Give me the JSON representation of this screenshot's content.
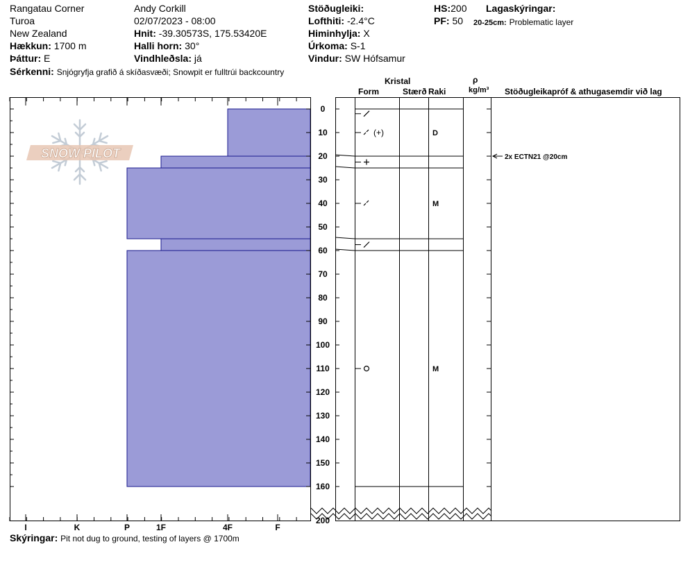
{
  "header": {
    "location": "Rangatau Corner",
    "area": "Turoa",
    "region": "New Zealand",
    "elevation_label": "Hækkun:",
    "elevation_value": "1700 m",
    "aspect_label": "Þáttur:",
    "aspect_value": "E",
    "observer": "Andy Corkill",
    "datetime": "02/07/2023 - 08:00",
    "coords_label": "Hnit:",
    "coords_value": "-39.30573S, 175.53420E",
    "slope_label": "Halli horn:",
    "slope_value": "30°",
    "wind_loading_label": "Vindhleðsla:",
    "wind_loading_value": "já",
    "stability_label": "Stöðugleiki:",
    "air_temp_label": "Lofthiti:",
    "air_temp_value": "-2.4°C",
    "sky_label": "Himinhylja:",
    "sky_value": "X",
    "precip_label": "Úrkoma:",
    "precip_value": "S-1",
    "wind_label": "Vindur:",
    "wind_value": "SW Hófsamur",
    "hs_label": "HS:",
    "hs_value": "200",
    "pf_label": "PF:",
    "pf_value": "50",
    "layers_label": "Lagaskýringar:",
    "layer_note_range": "20-25cm:",
    "layer_note_text": "Problematic layer",
    "features_label": "Sérkenni:",
    "features_value": "Snjógryfja grafið á skíðasvæði;  Snowpit er fulltrúi backcountry"
  },
  "columns": {
    "crystal": "Kristal",
    "form": "Form",
    "size": "Stærð",
    "moisture": "Raki",
    "rho": "ρ",
    "density_unit": "kg/m³",
    "tests_header": "Stöðugleikapróf & athugasemdir við lag"
  },
  "footer": {
    "notes_label": "Skýringar:",
    "notes_value": "Pit not dug to ground, testing of layers @ 1700m"
  },
  "logo_text": "SNOW PILOT",
  "colors": {
    "hardness_fill": "#9b9bd7",
    "hardness_stroke": "#1a1a8c"
  },
  "chart_data": {
    "type": "bar",
    "orientation": "horizontal",
    "depth_axis": {
      "unit": "cm",
      "range": [
        0,
        200
      ],
      "ticks": [
        0,
        10,
        20,
        30,
        40,
        50,
        60,
        70,
        80,
        90,
        100,
        110,
        120,
        130,
        140,
        150,
        160,
        200
      ]
    },
    "hardness_axis": {
      "ticks": [
        "I",
        "K",
        "P",
        "1F",
        "4F",
        "F"
      ]
    },
    "hardness_layers": [
      {
        "top": 0,
        "bottom": 20,
        "hardness": "4F"
      },
      {
        "top": 20,
        "bottom": 25,
        "hardness": "1F"
      },
      {
        "top": 25,
        "bottom": 55,
        "hardness": "P"
      },
      {
        "top": 55,
        "bottom": 60,
        "hardness": "1F"
      },
      {
        "top": 60,
        "bottom": 160,
        "hardness": "P"
      }
    ],
    "layer_boundaries": [
      0,
      20,
      25,
      55,
      60,
      160
    ],
    "profile_layers": [
      {
        "depth": 2,
        "form": "precipitation-particles-icon",
        "moisture": ""
      },
      {
        "depth": 10,
        "form": "decomposed-faceted-icon",
        "moisture": "D"
      },
      {
        "depth": 22.5,
        "form": "faceted-icon",
        "moisture": ""
      },
      {
        "depth": 40,
        "form": "decomposed-icon",
        "moisture": "M"
      },
      {
        "depth": 57.5,
        "form": "precipitation-particles-icon",
        "moisture": ""
      },
      {
        "depth": 110,
        "form": "rounded-grains-icon",
        "moisture": "M"
      }
    ],
    "tests": [
      {
        "depth": 20,
        "text": "2x ECTN21 @20cm"
      }
    ]
  }
}
